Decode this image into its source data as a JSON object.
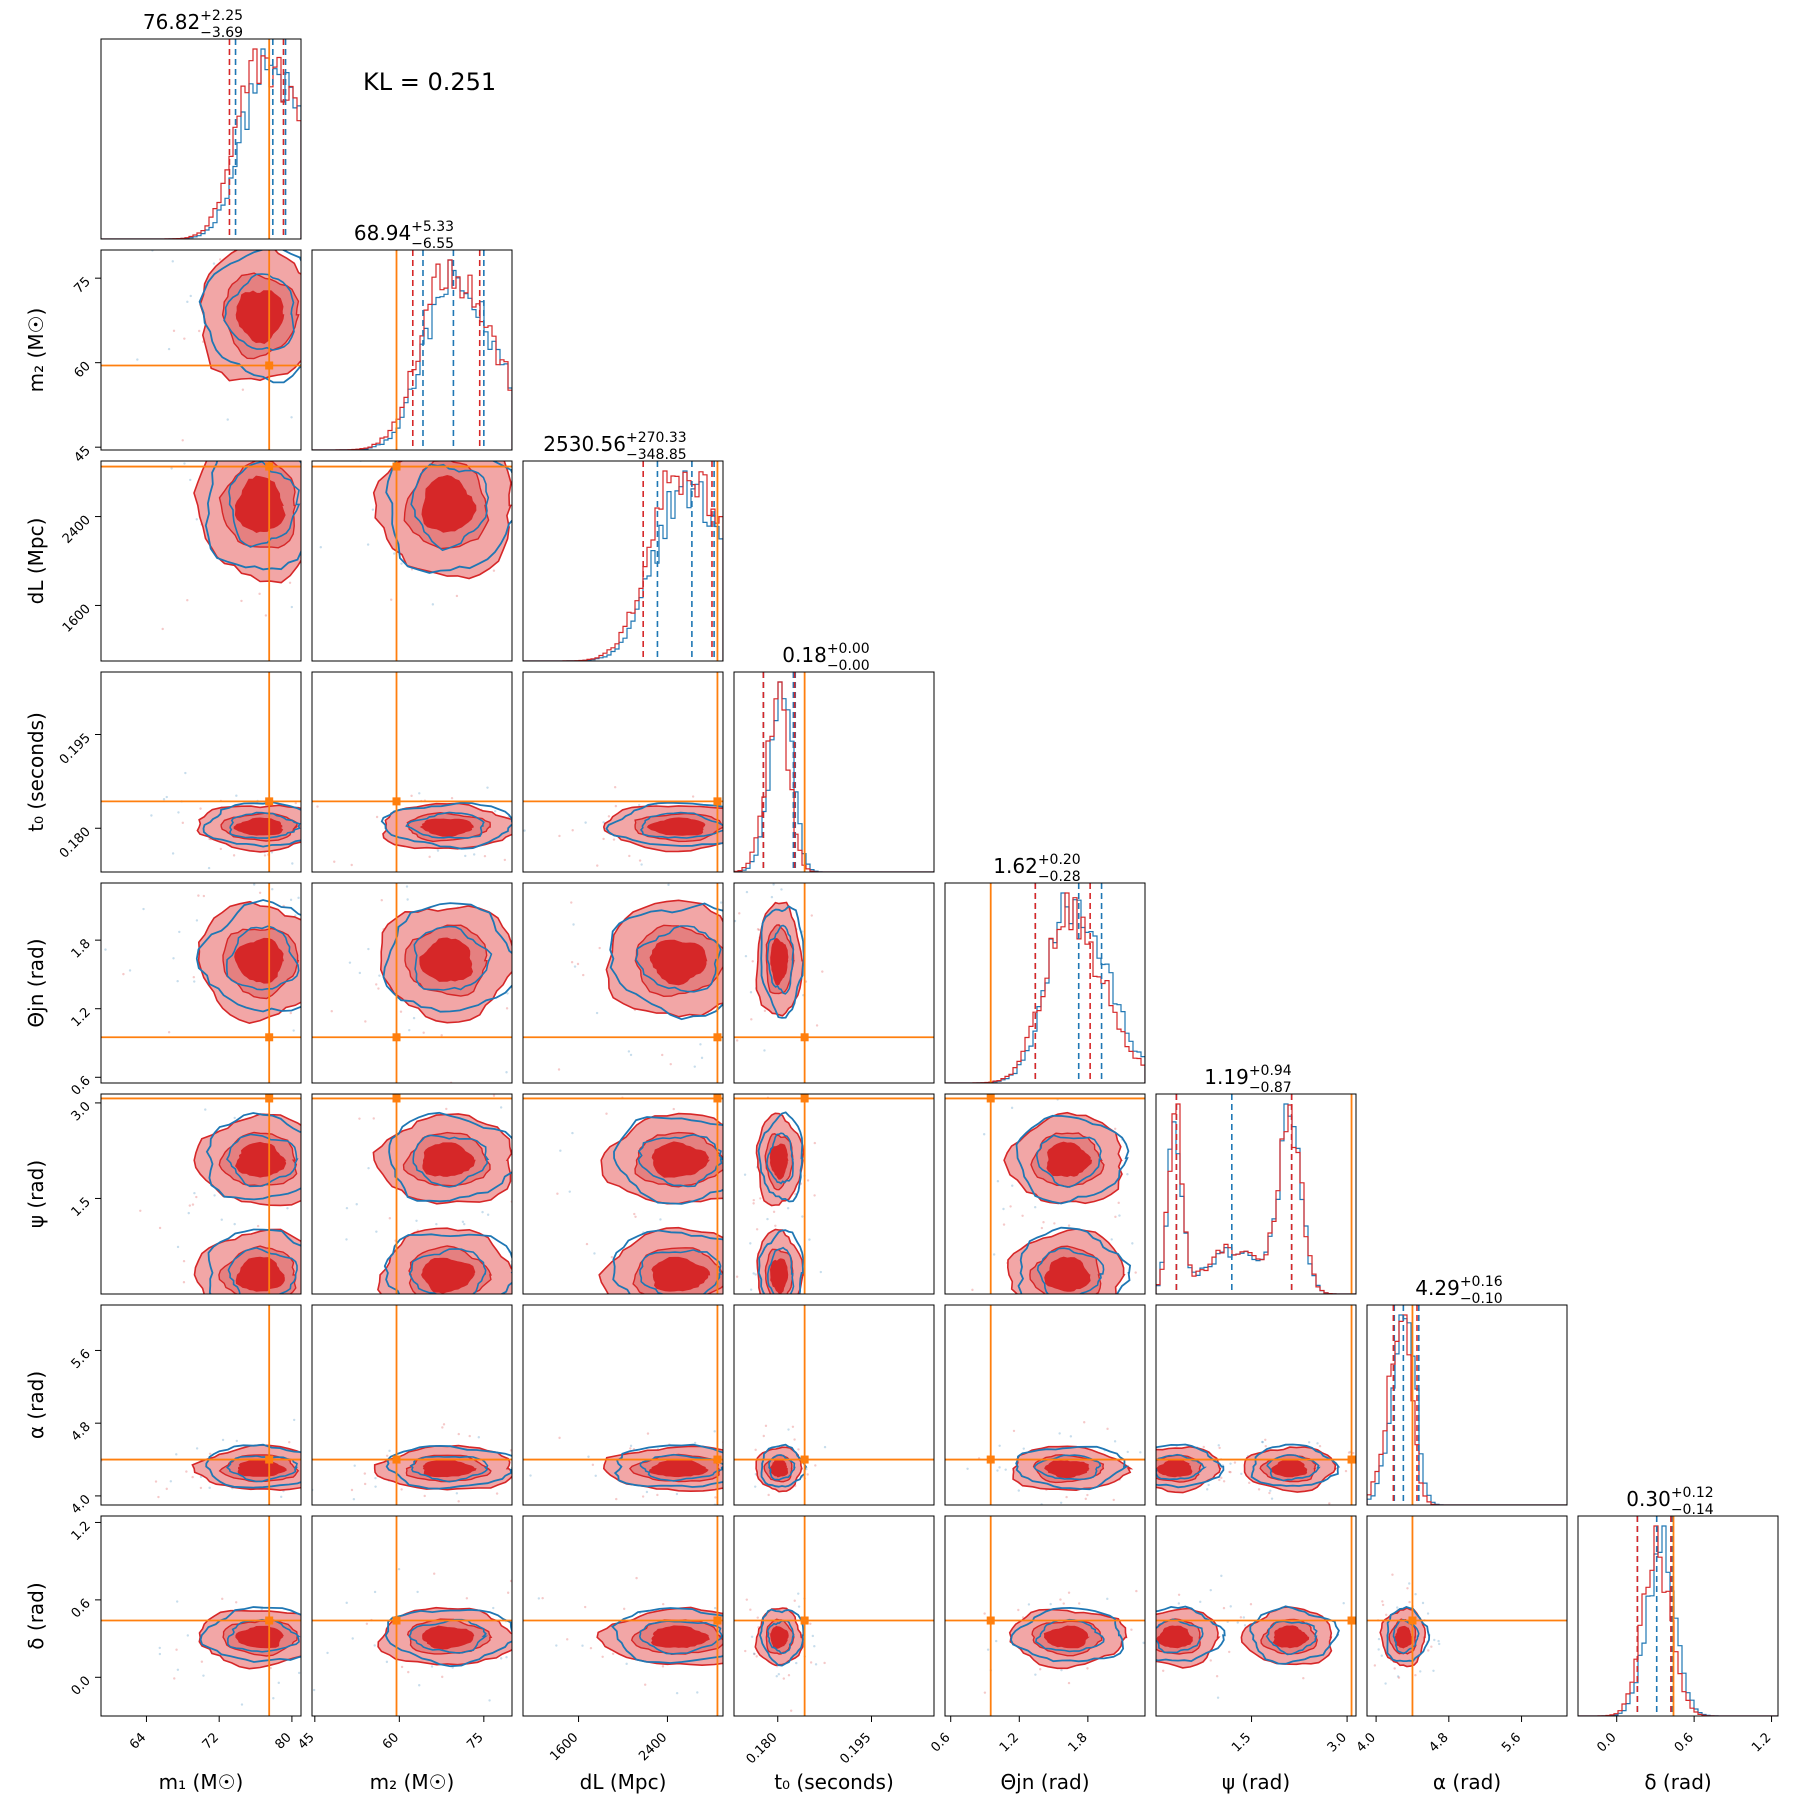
{
  "chart_data": {
    "type": "scatter",
    "subtype": "corner-plot",
    "kl_text": "KL = 0.251",
    "colors": {
      "series_a": "#d62728",
      "series_b": "#1f77b4",
      "truth": "#ff7f0e"
    },
    "parameters": [
      {
        "key": "m1",
        "axis_label": "m₁ (M☉)",
        "title": "76.82",
        "plus": "+2.25",
        "minus": "−3.69",
        "range": [
          59,
          81
        ],
        "ticks": [
          64,
          72,
          80
        ],
        "tick_labels": [
          "64",
          "72",
          "80"
        ],
        "truth": 77.5,
        "median": 76.82,
        "lo": 73.13,
        "hi": 79.07,
        "median_b": 77.9,
        "lo_b": 73.8,
        "hi_b": 79.3,
        "center": 76.5,
        "spread": 3.4,
        "skew": -0.8
      },
      {
        "key": "m2",
        "axis_label": "m₂ (M☉)",
        "title": "68.94",
        "plus": "+5.33",
        "minus": "−6.55",
        "range": [
          44.5,
          80
        ],
        "ticks": [
          45,
          60,
          75
        ],
        "tick_labels": [
          "45",
          "60",
          "75"
        ],
        "truth": 59.5,
        "median": 68.94,
        "lo": 62.39,
        "hi": 74.27,
        "median_b": 69.6,
        "lo_b": 64.2,
        "hi_b": 75.0,
        "center": 68.5,
        "spread": 6.0,
        "skew": -0.6
      },
      {
        "key": "dL",
        "axis_label": "dL (Mpc)",
        "title": "2530.56",
        "plus": "+270.33",
        "minus": "−348.85",
        "range": [
          1100,
          2900
        ],
        "ticks": [
          1600,
          2400
        ],
        "tick_labels": [
          "1600",
          "2400"
        ],
        "truth": 2850,
        "median": 2530.56,
        "lo": 2181.71,
        "hi": 2800.89,
        "median_b": 2620,
        "lo_b": 2310,
        "hi_b": 2820,
        "center": 2500,
        "spread": 330,
        "skew": -0.7
      },
      {
        "key": "t0",
        "axis_label": "t₀ (seconds)",
        "title": "0.18",
        "plus": "+0.00",
        "minus": "−0.00",
        "range": [
          0.173,
          0.205
        ],
        "ticks": [
          0.18,
          0.195
        ],
        "tick_labels": [
          "0.180",
          "0.195"
        ],
        "truth": 0.1843,
        "median": 0.1825,
        "lo": 0.1777,
        "hi": 0.1827,
        "median_b": 0.1825,
        "lo_b": 0.1777,
        "hi_b": 0.1828,
        "center": 0.1802,
        "spread": 0.0018,
        "skew": 0.3
      },
      {
        "key": "theta",
        "axis_label": "Θjn (rad)",
        "title": "1.62",
        "plus": "+0.20",
        "minus": "−0.28",
        "range": [
          0.55,
          2.3
        ],
        "ticks": [
          0.6,
          1.2,
          1.8
        ],
        "tick_labels": [
          "0.6",
          "1.2",
          "1.8"
        ],
        "truth": 0.95,
        "median": 1.62,
        "lo": 1.34,
        "hi": 1.82,
        "median_b": 1.72,
        "lo_b": 1.34,
        "hi_b": 1.92,
        "center": 1.62,
        "spread": 0.25,
        "skew": -0.5
      },
      {
        "key": "psi",
        "axis_label": "ψ (rad)",
        "title": "1.19",
        "plus": "+0.94",
        "minus": "−0.87",
        "range": [
          0,
          3.14
        ],
        "ticks": [
          1.5,
          3.0
        ],
        "tick_labels": [
          "1.5",
          "3.0"
        ],
        "truth": 3.07,
        "median": 1.19,
        "lo": 0.32,
        "hi": 2.13,
        "median_b": 1.19,
        "lo_b": 0.32,
        "hi_b": 2.13,
        "center": 1.2,
        "spread": 0.7,
        "skew": 0
      },
      {
        "key": "alpha",
        "axis_label": "α (rad)",
        "title": "4.29",
        "plus": "+0.16",
        "minus": "−0.10",
        "range": [
          3.9,
          6.1
        ],
        "ticks": [
          4.0,
          4.8,
          5.6
        ],
        "tick_labels": [
          "4.0",
          "4.8",
          "5.6"
        ],
        "truth": 4.4,
        "median": 4.29,
        "lo": 4.19,
        "hi": 4.45,
        "median_b": 4.3,
        "lo_b": 4.2,
        "hi_b": 4.47,
        "center": 4.3,
        "spread": 0.12,
        "skew": 0.6
      },
      {
        "key": "delta",
        "axis_label": "δ (rad)",
        "title": "0.30",
        "plus": "+0.12",
        "minus": "−0.14",
        "range": [
          -0.3,
          1.25
        ],
        "ticks": [
          0.0,
          0.6,
          1.2
        ],
        "tick_labels": [
          "0.0",
          "0.6",
          "1.2"
        ],
        "truth": 0.44,
        "median": 0.3,
        "lo": 0.16,
        "hi": 0.42,
        "median_b": 0.31,
        "lo_b": 0.16,
        "hi_b": 0.43,
        "center": 0.31,
        "spread": 0.11,
        "skew": 0
      }
    ]
  }
}
